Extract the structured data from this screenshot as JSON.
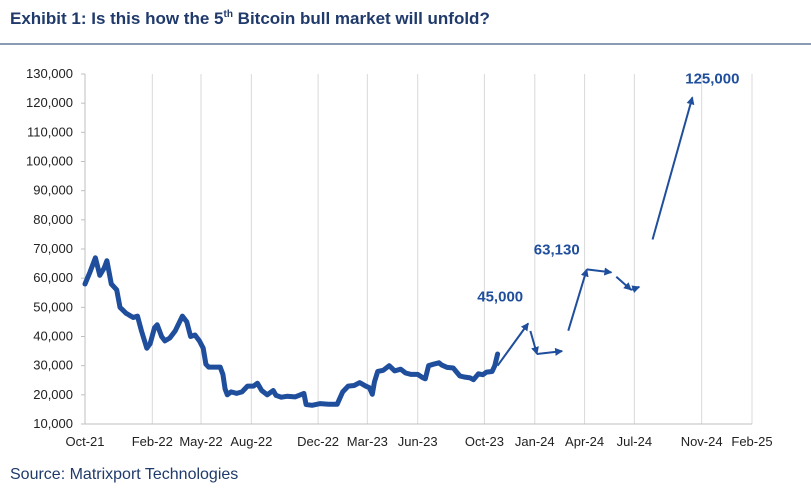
{
  "title": {
    "pre": "Exhibit 1: Is this how the 5",
    "sup": "th",
    "post": " Bitcoin bull market will unfold?"
  },
  "source": "Source: Matrixport Technologies",
  "colors": {
    "series": "#1f4e9c",
    "annotation": "#1f4e9c",
    "grid": "#d9d9d9",
    "title": "#1f3a6b"
  },
  "chart_data": {
    "type": "line",
    "title": "Exhibit 1: Is this how the 5th Bitcoin bull market will unfold?",
    "xlabel": "",
    "ylabel": "",
    "ylim": [
      10000,
      130000
    ],
    "xlim": [
      "2021-10-01",
      "2025-02-01"
    ],
    "grid": "vertical",
    "yticks": [
      10000,
      20000,
      30000,
      40000,
      50000,
      60000,
      70000,
      80000,
      90000,
      100000,
      110000,
      120000,
      130000
    ],
    "ytick_labels": [
      "10,000",
      "20,000",
      "30,000",
      "40,000",
      "50,000",
      "60,000",
      "70,000",
      "80,000",
      "90,000",
      "100,000",
      "110,000",
      "120,000",
      "130,000"
    ],
    "xticks": [
      "2021-10-01",
      "2022-02-01",
      "2022-05-01",
      "2022-08-01",
      "2022-12-01",
      "2023-03-01",
      "2023-06-01",
      "2023-10-01",
      "2024-01-01",
      "2024-04-01",
      "2024-07-01",
      "2024-11-01",
      "2025-02-01"
    ],
    "xtick_labels": [
      "Oct-21",
      "Feb-22",
      "May-22",
      "Aug-22",
      "Dec-22",
      "Mar-23",
      "Jun-23",
      "Oct-23",
      "Jan-24",
      "Apr-24",
      "Jul-24",
      "Nov-24",
      "Feb-25"
    ],
    "series": [
      {
        "x": [
          "2021-10-01",
          "2021-10-10",
          "2021-10-20",
          "2021-10-28",
          "2021-11-05",
          "2021-11-10",
          "2021-11-18",
          "2021-11-28",
          "2021-12-04",
          "2021-12-15",
          "2021-12-28",
          "2022-01-05",
          "2022-01-12",
          "2022-01-22",
          "2022-01-28",
          "2022-02-05",
          "2022-02-10",
          "2022-02-18",
          "2022-02-24",
          "2022-03-05",
          "2022-03-15",
          "2022-03-28",
          "2022-04-05",
          "2022-04-12",
          "2022-04-20",
          "2022-04-28",
          "2022-05-05",
          "2022-05-10",
          "2022-05-15",
          "2022-05-25",
          "2022-06-05",
          "2022-06-10",
          "2022-06-14",
          "2022-06-18",
          "2022-06-25",
          "2022-07-05",
          "2022-07-15",
          "2022-07-25",
          "2022-08-05",
          "2022-08-12",
          "2022-08-20",
          "2022-08-30",
          "2022-09-10",
          "2022-09-15",
          "2022-09-25",
          "2022-10-05",
          "2022-10-20",
          "2022-11-05",
          "2022-11-09",
          "2022-11-20",
          "2022-12-05",
          "2022-12-20",
          "2023-01-05",
          "2023-01-15",
          "2023-01-25",
          "2023-02-05",
          "2023-02-15",
          "2023-02-25",
          "2023-03-05",
          "2023-03-10",
          "2023-03-14",
          "2023-03-20",
          "2023-03-30",
          "2023-04-10",
          "2023-04-20",
          "2023-05-01",
          "2023-05-10",
          "2023-05-20",
          "2023-06-01",
          "2023-06-10",
          "2023-06-15",
          "2023-06-21",
          "2023-06-30",
          "2023-07-10",
          "2023-07-15",
          "2023-07-25",
          "2023-08-05",
          "2023-08-17",
          "2023-08-25",
          "2023-09-05",
          "2023-09-11",
          "2023-09-20",
          "2023-09-28",
          "2023-10-05",
          "2023-10-15",
          "2023-10-20",
          "2023-10-25"
        ],
        "values": [
          58000,
          62000,
          67000,
          61000,
          63500,
          66000,
          58000,
          56000,
          50000,
          48000,
          46500,
          47000,
          42000,
          36000,
          37500,
          43000,
          44000,
          40000,
          38500,
          39500,
          42000,
          47000,
          45000,
          40000,
          40500,
          38500,
          36000,
          30500,
          29500,
          29500,
          29500,
          27000,
          22000,
          20000,
          21000,
          20500,
          21000,
          23000,
          23000,
          24000,
          21500,
          20000,
          21500,
          19800,
          19200,
          19500,
          19300,
          20500,
          16700,
          16400,
          17000,
          16800,
          16800,
          21000,
          23000,
          23200,
          24200,
          23100,
          22400,
          20200,
          24500,
          28000,
          28400,
          30000,
          28200,
          28800,
          27500,
          27000,
          27000,
          25900,
          25500,
          30000,
          30500,
          31000,
          30200,
          29400,
          29200,
          26500,
          26100,
          25800,
          25200,
          27200,
          26900,
          27800,
          28000,
          30000,
          34000
        ]
      }
    ],
    "annotations": [
      {
        "label": "45,000",
        "value": 45000
      },
      {
        "label": "63,130",
        "value": 63130
      },
      {
        "label": "125,000",
        "value": 125000
      }
    ],
    "projection_path": {
      "x": [
        "2023-10-25",
        "2023-12-20",
        "2024-01-05",
        "2024-02-20",
        "2024-04-05",
        "2024-05-20",
        "2024-06-25",
        "2024-07-10",
        "2024-10-15"
      ],
      "values": [
        30000,
        44500,
        34000,
        35000,
        63000,
        62000,
        56000,
        57000,
        122000
      ]
    }
  }
}
